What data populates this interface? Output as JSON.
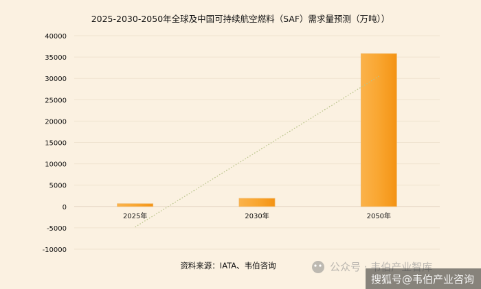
{
  "chart_data": {
    "type": "bar",
    "title": "2025-2030-2050年全球及中国可持续航空燃料（SAF）需求量预测（万吨））",
    "categories": [
      "2025年",
      "2030年",
      "2050年"
    ],
    "values": [
      650,
      1900,
      35800
    ],
    "yticks": [
      40000,
      35000,
      30000,
      25000,
      20000,
      15000,
      10000,
      5000,
      0,
      -5000,
      -10000
    ],
    "ylim": [
      -10000,
      40000
    ],
    "grid": true,
    "trendline": {
      "style": "dotted",
      "color": "#b9c48a",
      "start_value": -4800,
      "end_value": 30500
    },
    "bar_color": "#f7a228",
    "source": "资料来源：IATA、韦伯咨询"
  },
  "watermark": {
    "line1": "公众号 · 韦伯产业智库",
    "line2": "搜狐号@韦伯产业咨询"
  }
}
